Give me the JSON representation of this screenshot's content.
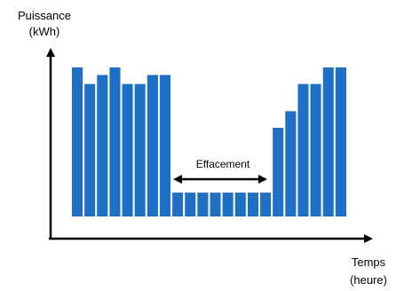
{
  "chart_data": {
    "type": "bar",
    "title": "",
    "ylabel": [
      "Puissance",
      "(kWh)"
    ],
    "xlabel": [
      "Temps",
      "(heure)"
    ],
    "annotation": "Effacement",
    "ylim": [
      0,
      100
    ],
    "grid": false,
    "legend": "none",
    "values": [
      100,
      89,
      95,
      100,
      89,
      89,
      95,
      95,
      17,
      17,
      17,
      17,
      17,
      17,
      17,
      17,
      60,
      71,
      89,
      89,
      100,
      100
    ],
    "colors": {
      "bar": "#1F6FC6",
      "bar_edge": "#FFFFFF",
      "axis": "#000000"
    }
  }
}
